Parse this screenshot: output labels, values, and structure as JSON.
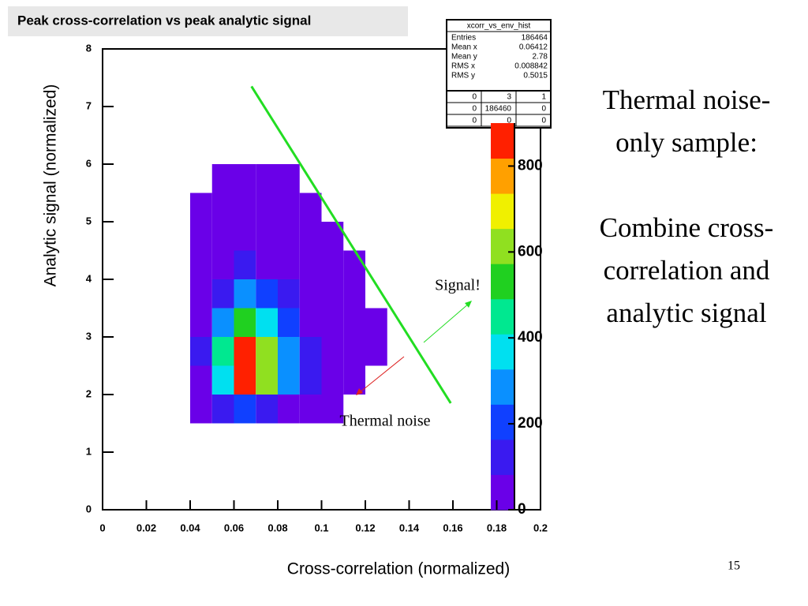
{
  "chart_data": {
    "type": "heatmap2d",
    "title": "Peak cross-correlation vs peak analytic signal",
    "x_label": "Cross-correlation (normalized)",
    "y_label": "Analytic signal (normalized)",
    "xlim": [
      0,
      0.2
    ],
    "ylim": [
      0,
      8
    ],
    "xticks": [
      0,
      0.02,
      0.04,
      0.06,
      0.08,
      0.1,
      0.12,
      0.14,
      0.16,
      0.18,
      0.2
    ],
    "yticks": [
      0,
      1,
      2,
      3,
      4,
      5,
      6,
      7,
      8
    ],
    "x_bins": [
      0.04,
      0.05,
      0.06,
      0.07,
      0.08,
      0.09,
      0.1,
      0.11,
      0.12,
      0.13
    ],
    "y_bins": [
      1.5,
      2,
      2.5,
      3,
      3.5,
      4,
      4.5,
      5,
      5.5,
      6
    ],
    "counts": [
      [
        40,
        120,
        200,
        160,
        80,
        30,
        10,
        0,
        0
      ],
      [
        80,
        400,
        850,
        600,
        250,
        90,
        30,
        5,
        0
      ],
      [
        90,
        450,
        900,
        650,
        280,
        100,
        35,
        8,
        2
      ],
      [
        60,
        300,
        550,
        400,
        180,
        70,
        20,
        5,
        1
      ],
      [
        30,
        150,
        250,
        190,
        90,
        35,
        10,
        3,
        0
      ],
      [
        12,
        60,
        100,
        80,
        40,
        15,
        4,
        1,
        0
      ],
      [
        4,
        20,
        35,
        30,
        15,
        5,
        2,
        0,
        0
      ],
      [
        1,
        6,
        10,
        8,
        4,
        2,
        0,
        0,
        0
      ],
      [
        0,
        2,
        3,
        2,
        1,
        0,
        0,
        0,
        0
      ]
    ],
    "zlim": [
      0,
      900
    ],
    "zticks": [
      0,
      200,
      400,
      600,
      800
    ],
    "palette": [
      "#6a00e8",
      "#3a1af0",
      "#1040ff",
      "#0a90ff",
      "#00e0f0",
      "#00e890",
      "#20d020",
      "#90e020",
      "#f0f000",
      "#ffa000",
      "#ff2000"
    ],
    "cut_line": {
      "x": [
        0.068,
        0.159
      ],
      "y": [
        7.35,
        1.85
      ],
      "color": "#22dd22"
    },
    "annotations": {
      "signal": "Signal!",
      "noise": "Thermal noise"
    },
    "stats": {
      "name": "xcorr_vs_env_hist",
      "rows": [
        [
          "Entries",
          "186464"
        ],
        [
          "Mean x",
          "0.06412"
        ],
        [
          "Mean y",
          "2.78"
        ],
        [
          "RMS x",
          "0.008842"
        ],
        [
          "RMS y",
          "0.5015"
        ]
      ],
      "grid": [
        [
          "0",
          "3",
          "1"
        ],
        [
          "0",
          "186460",
          "0"
        ],
        [
          "0",
          "0",
          "0"
        ]
      ]
    }
  },
  "side_text": {
    "para1": [
      "Thermal noise-",
      "only sample:"
    ],
    "para2": [
      "Combine cross-",
      "correlation and",
      "analytic signal"
    ]
  },
  "page_number": "15"
}
